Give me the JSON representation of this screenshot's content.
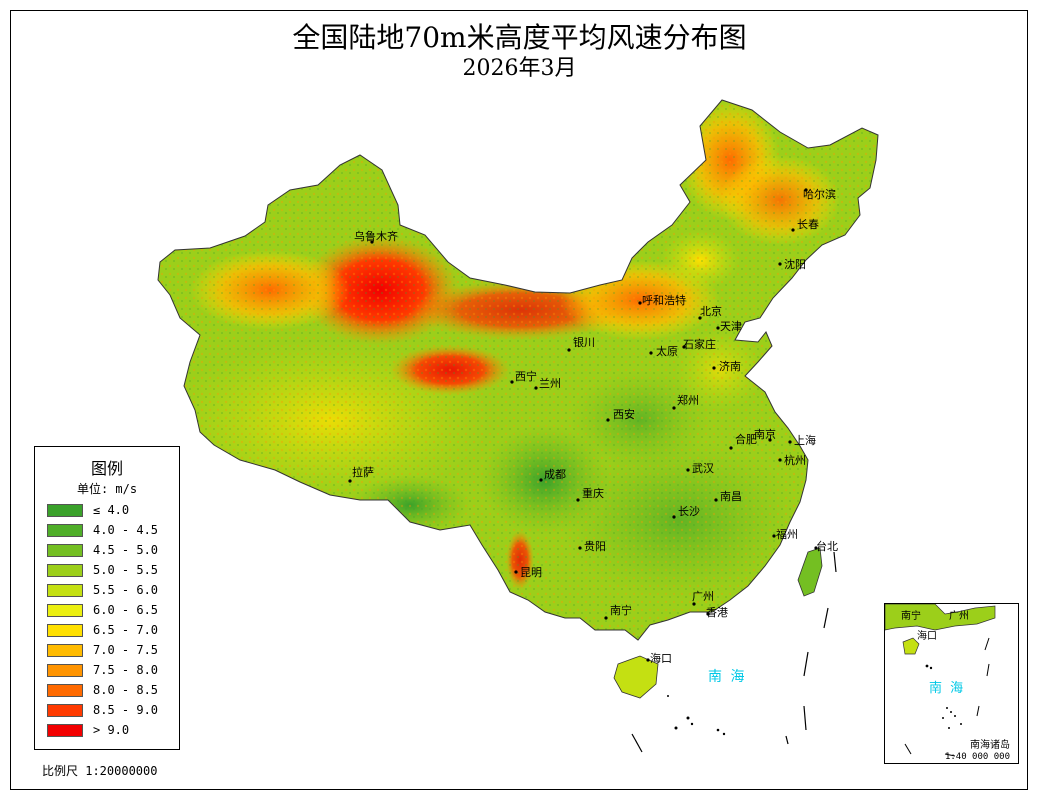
{
  "title": "全国陆地70m米高度平均风速分布图",
  "subtitle": "2026年3月",
  "legend": {
    "title": "图例",
    "unit": "单位: m/s",
    "items": [
      {
        "label": "≤ 4.0",
        "color": "#3aa12a"
      },
      {
        "label": "4.0 - 4.5",
        "color": "#4fae28"
      },
      {
        "label": "4.5 - 5.0",
        "color": "#74bf22"
      },
      {
        "label": "5.0 - 5.5",
        "color": "#9ccf1a"
      },
      {
        "label": "5.5 - 6.0",
        "color": "#c4e012"
      },
      {
        "label": "6.0 - 6.5",
        "color": "#ebef10"
      },
      {
        "label": "6.5 - 7.0",
        "color": "#ffe000"
      },
      {
        "label": "7.0 - 7.5",
        "color": "#ffbb00"
      },
      {
        "label": "7.5 - 8.0",
        "color": "#ff9400"
      },
      {
        "label": "8.0 - 8.5",
        "color": "#ff6a00"
      },
      {
        "label": "8.5 - 9.0",
        "color": "#ff3a00"
      },
      {
        "label": "> 9.0",
        "color": "#f20000"
      }
    ]
  },
  "scale": "比例尺 1:20000000",
  "cities": [
    {
      "id": "wulumuqi",
      "name": "乌鲁木齐"
    },
    {
      "id": "haerbin",
      "name": "哈尔滨"
    },
    {
      "id": "changchun",
      "name": "长春"
    },
    {
      "id": "shenyang",
      "name": "沈阳"
    },
    {
      "id": "huhehaote",
      "name": "呼和浩特"
    },
    {
      "id": "beijing",
      "name": "北京"
    },
    {
      "id": "tianjin",
      "name": "天津"
    },
    {
      "id": "yinchuan",
      "name": "银川"
    },
    {
      "id": "taiyuan",
      "name": "太原"
    },
    {
      "id": "shijiazhuang",
      "name": "石家庄"
    },
    {
      "id": "jinan",
      "name": "济南"
    },
    {
      "id": "xining",
      "name": "西宁"
    },
    {
      "id": "lanzhou",
      "name": "兰州"
    },
    {
      "id": "zhengzhou",
      "name": "郑州"
    },
    {
      "id": "xian",
      "name": "西安"
    },
    {
      "id": "nanjing",
      "name": "南京"
    },
    {
      "id": "shanghai",
      "name": "上海"
    },
    {
      "id": "hefei",
      "name": "合肥"
    },
    {
      "id": "hangzhou",
      "name": "杭州"
    },
    {
      "id": "lasa",
      "name": "拉萨"
    },
    {
      "id": "chengdu",
      "name": "成都"
    },
    {
      "id": "wuhan",
      "name": "武汉"
    },
    {
      "id": "chongqing",
      "name": "重庆"
    },
    {
      "id": "nanchang",
      "name": "南昌"
    },
    {
      "id": "changsha",
      "name": "长沙"
    },
    {
      "id": "guiyang",
      "name": "贵阳"
    },
    {
      "id": "fuzhou",
      "name": "福州"
    },
    {
      "id": "taibei",
      "name": "台北"
    },
    {
      "id": "kunming",
      "name": "昆明"
    },
    {
      "id": "guangzhou",
      "name": "广州"
    },
    {
      "id": "nanning",
      "name": "南宁"
    },
    {
      "id": "xianggang",
      "name": "香港"
    },
    {
      "id": "haikou",
      "name": "海口"
    }
  ],
  "sea_label": "南  海",
  "inset": {
    "cities": [
      {
        "id": "nanning",
        "name": "南宁"
      },
      {
        "id": "guangzhou",
        "name": "广州"
      },
      {
        "id": "haikou",
        "name": "海口"
      }
    ],
    "sea_label": "南  海",
    "islands_label": "南海诸岛",
    "scale": "1:40 000 000"
  }
}
